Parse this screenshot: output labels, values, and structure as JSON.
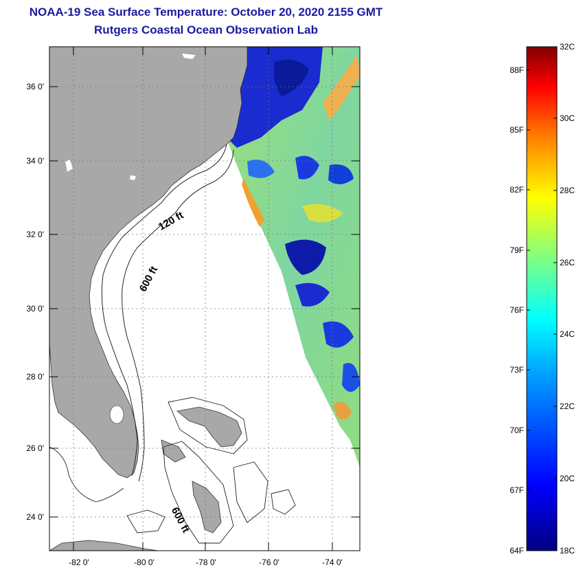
{
  "header": {
    "title": "NOAA-19 Sea Surface Temperature:  October 20, 2020 2155 GMT",
    "subtitle": "Rutgers Coastal Ocean Observation Lab"
  },
  "map": {
    "lat_labels": [
      "36 0'",
      "34 0'",
      "32 0'",
      "30 0'",
      "28 0'",
      "26 0'",
      "24 0'"
    ],
    "lon_labels": [
      "-82 0'",
      "-80 0'",
      "-78 0'",
      "-76 0'",
      "-74 0'"
    ],
    "contours": {
      "shelf_120": "120 ft",
      "shelf_600": "600 ft",
      "bahamas_600": "600 ft"
    },
    "colors": {
      "land": "#a8a8a8",
      "ocean_nodata": "#ffffff",
      "graticule": "#777777"
    }
  },
  "colorbar": {
    "fahrenheit": [
      "88F",
      "85F",
      "82F",
      "79F",
      "76F",
      "73F",
      "70F",
      "67F",
      "64F"
    ],
    "celsius": [
      "32C",
      "30C",
      "28C",
      "26C",
      "24C",
      "22C",
      "20C",
      "18C"
    ],
    "colors": [
      "#00007f",
      "#0000ff",
      "#0080ff",
      "#00ffff",
      "#80ff80",
      "#ffff00",
      "#ff8000",
      "#ff0000",
      "#7f0000"
    ]
  }
}
